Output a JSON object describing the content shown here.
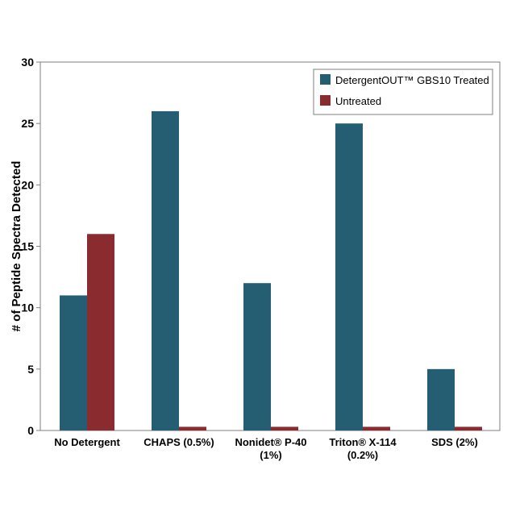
{
  "chart_data": {
    "type": "bar",
    "ylabel": "# of Peptide Spectra Detected",
    "xlabel": "",
    "ylim": [
      0,
      30
    ],
    "yticks": [
      0,
      5,
      10,
      15,
      20,
      25,
      30
    ],
    "grid": false,
    "legend_position": "top-right",
    "categories": [
      [
        "No Detergent"
      ],
      [
        "CHAPS (0.5%)"
      ],
      [
        "Nonidet® P-40",
        "(1%)"
      ],
      [
        "Triton® X-114",
        "(0.2%)"
      ],
      [
        "SDS (2%)"
      ]
    ],
    "series": [
      {
        "name": "DetergentOUT™ GBS10 Treated",
        "color": "#255e72",
        "values": [
          11,
          26,
          12,
          25,
          5
        ]
      },
      {
        "name": "Untreated",
        "color": "#8a2b2f",
        "values": [
          16,
          0.3,
          0.3,
          0.3,
          0.3
        ]
      }
    ]
  }
}
